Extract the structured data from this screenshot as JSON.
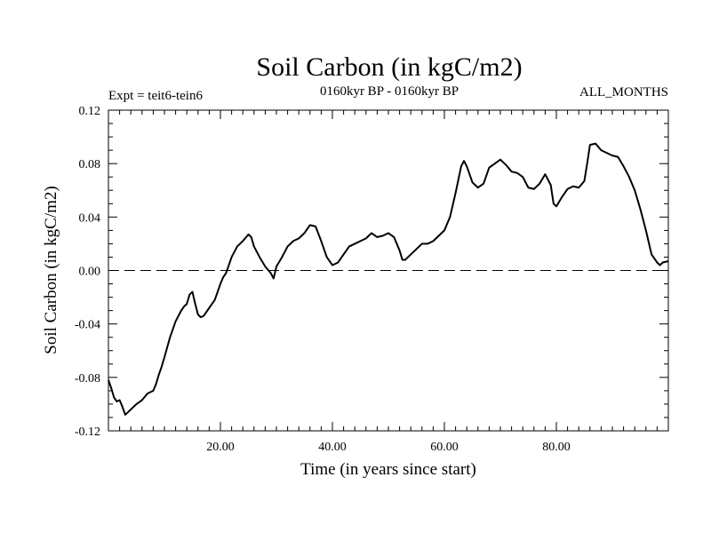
{
  "chart_data": {
    "type": "line",
    "title": "Soil Carbon (in kgC/m2)",
    "subtitle": "0160kyr BP - 0160kyr BP",
    "left_note": "Expt = teit6-tein6",
    "right_note": "ALL_MONTHS",
    "xlabel": "Time (in years since start)",
    "ylabel": "Soil Carbon (in kgC/m2)",
    "xlim": [
      0,
      100
    ],
    "ylim": [
      -0.12,
      0.12
    ],
    "x_ticks": [
      20,
      40,
      60,
      80
    ],
    "x_tick_labels": [
      "20.00",
      "40.00",
      "60.00",
      "80.00"
    ],
    "y_ticks": [
      0.12,
      0.08,
      0.04,
      0.0,
      -0.04,
      -0.08,
      -0.12
    ],
    "y_tick_labels": [
      "0.12",
      "0.08",
      "0.04",
      "0.00",
      "-0.04",
      "-0.08",
      "-0.12"
    ],
    "reference_line": 0,
    "grid": false,
    "series": [
      {
        "color": "#000000",
        "x": [
          0,
          0.5,
          1,
          1.5,
          2,
          2.5,
          3,
          4,
          5,
          6,
          7,
          8,
          8.5,
          9,
          9.5,
          10,
          11,
          12,
          13,
          13.5,
          14,
          14.5,
          15,
          15.5,
          16,
          16.5,
          17,
          18,
          19,
          20,
          20.5,
          21,
          22,
          23,
          24,
          25,
          25.5,
          26,
          27,
          28,
          29,
          29.5,
          30,
          31,
          32,
          33,
          34,
          35,
          36,
          37,
          38,
          39,
          40,
          41,
          42,
          43,
          44,
          45,
          46,
          47,
          48,
          49,
          50,
          51,
          52,
          52.5,
          53,
          54,
          55,
          56,
          57,
          58,
          59,
          60,
          61,
          62,
          63,
          63.5,
          64,
          65,
          66,
          67,
          68,
          69,
          70,
          71,
          72,
          73,
          74,
          75,
          76,
          77,
          78,
          79,
          79.5,
          80,
          81,
          82,
          83,
          84,
          85,
          85.5,
          86,
          87,
          88,
          89,
          90,
          91,
          92,
          93,
          94,
          95,
          96,
          97,
          98,
          98.5,
          99,
          100
        ],
        "y": [
          -0.082,
          -0.088,
          -0.095,
          -0.098,
          -0.097,
          -0.102,
          -0.108,
          -0.104,
          -0.1,
          -0.097,
          -0.092,
          -0.09,
          -0.085,
          -0.078,
          -0.072,
          -0.065,
          -0.05,
          -0.038,
          -0.03,
          -0.027,
          -0.025,
          -0.018,
          -0.016,
          -0.025,
          -0.033,
          -0.035,
          -0.034,
          -0.028,
          -0.022,
          -0.01,
          -0.005,
          -0.002,
          0.01,
          0.018,
          0.022,
          0.027,
          0.025,
          0.018,
          0.01,
          0.003,
          -0.002,
          -0.006,
          0.003,
          0.01,
          0.018,
          0.022,
          0.024,
          0.028,
          0.034,
          0.033,
          0.022,
          0.01,
          0.004,
          0.006,
          0.012,
          0.018,
          0.02,
          0.022,
          0.024,
          0.028,
          0.025,
          0.026,
          0.028,
          0.025,
          0.015,
          0.008,
          0.008,
          0.012,
          0.016,
          0.02,
          0.02,
          0.022,
          0.026,
          0.03,
          0.04,
          0.058,
          0.078,
          0.082,
          0.078,
          0.066,
          0.062,
          0.065,
          0.077,
          0.08,
          0.083,
          0.079,
          0.074,
          0.073,
          0.07,
          0.062,
          0.061,
          0.065,
          0.072,
          0.064,
          0.05,
          0.048,
          0.055,
          0.061,
          0.063,
          0.062,
          0.067,
          0.08,
          0.094,
          0.095,
          0.09,
          0.088,
          0.086,
          0.085,
          0.078,
          0.07,
          0.06,
          0.046,
          0.03,
          0.012,
          0.006,
          0.004,
          0.006,
          0.007
        ]
      }
    ]
  }
}
